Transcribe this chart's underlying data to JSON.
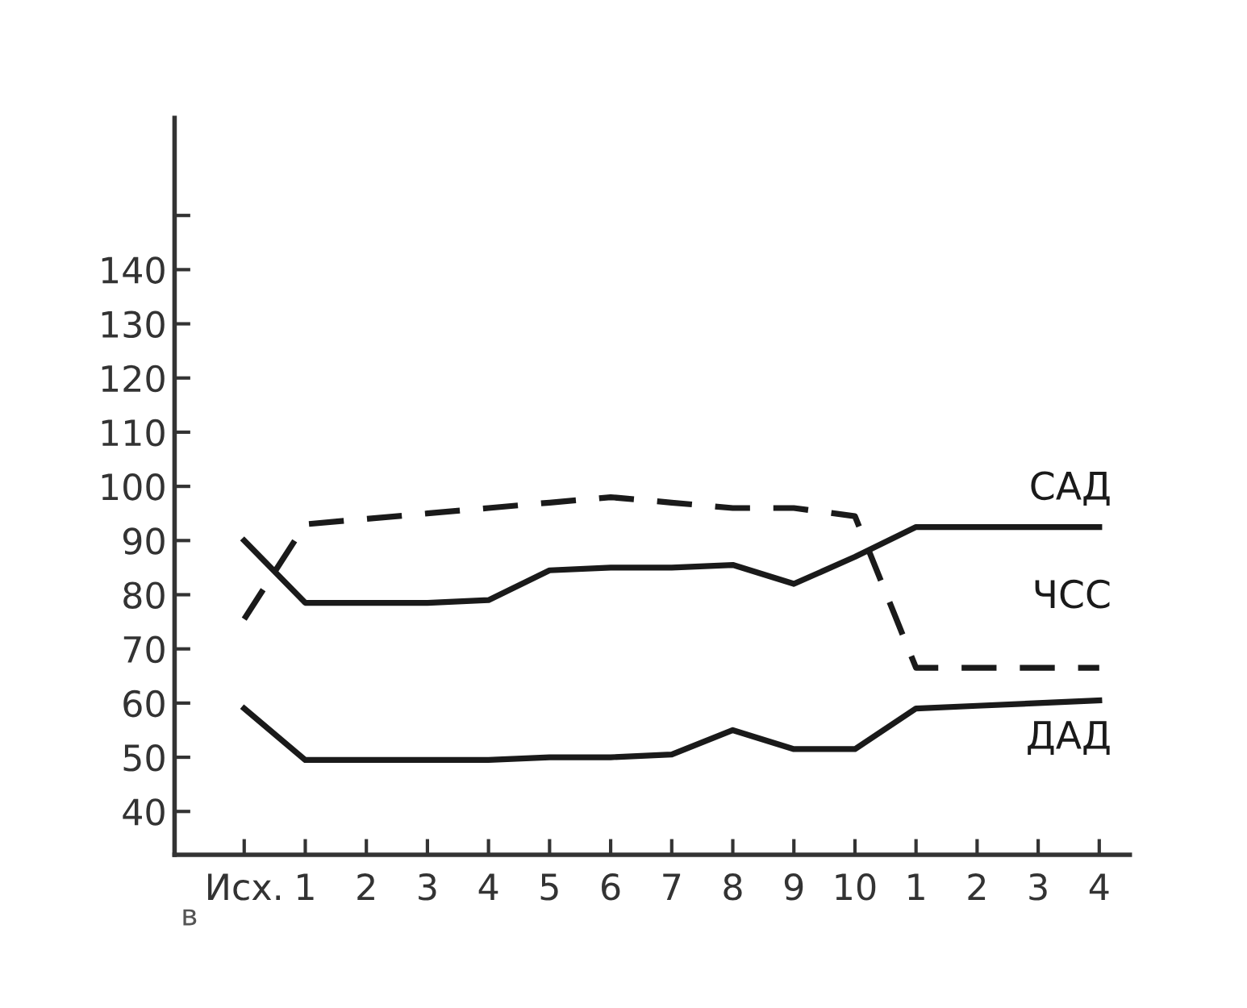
{
  "chart_data": {
    "type": "line",
    "categories": [
      "Исх.",
      "1",
      "2",
      "3",
      "4",
      "5",
      "6",
      "7",
      "8",
      "9",
      "10",
      "1",
      "2",
      "3",
      "4"
    ],
    "series": [
      {
        "name": "САД",
        "color": "#1a1a1a",
        "line_style": "solid",
        "values": [
          90,
          78.5,
          78.5,
          78.5,
          79,
          84.5,
          85,
          85,
          85.5,
          82,
          87,
          92.5,
          92.5,
          92.5,
          92.5
        ]
      },
      {
        "name": "ЧСС",
        "color": "#1a1a1a",
        "line_style": "dashed",
        "values": [
          75.5,
          93,
          94,
          95,
          96,
          97,
          98,
          97,
          96,
          96,
          94.5,
          66.5,
          66.5,
          66.5,
          66.5
        ]
      },
      {
        "name": "ДАД",
        "color": "#1a1a1a",
        "line_style": "solid",
        "values": [
          59,
          49.5,
          49.5,
          49.5,
          49.5,
          50,
          50,
          50.5,
          55,
          51.5,
          51.5,
          59,
          59.5,
          60,
          60.5
        ]
      }
    ],
    "ylim": [
      32,
      168
    ],
    "yticks": [
      40,
      50,
      60,
      70,
      80,
      90,
      100,
      110,
      120,
      130,
      140,
      {
        "value": 150,
        "label": null
      }
    ],
    "annotations": [
      "в"
    ],
    "grid": false,
    "legend": false,
    "marker": "none"
  }
}
